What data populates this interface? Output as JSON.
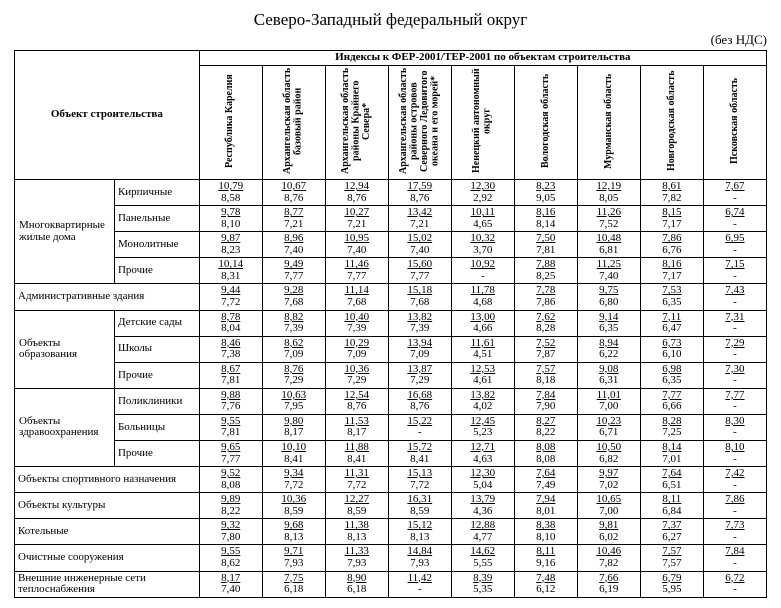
{
  "title": "Северо-Западный федеральный округ",
  "vat_note": "(без НДС)",
  "header_obj": "Объект строительства",
  "header_idx": "Индексы к ФЕР-2001/ТЕР-2001 по объектам строительства",
  "regions": [
    "Республика Карелия",
    "Архангельская область базовый район",
    "Архангельская область районы Крайнего Севера*",
    "Архангельская область районы островов Северного Ледовитого океана и его морей*",
    "Ненецкий автономный округ",
    "Вологодская область",
    "Мурманская область",
    "Новгородская область",
    "Псковская область"
  ],
  "groups": [
    {
      "label": "Многоквартирные жилые дома",
      "rows": [
        {
          "sub": "Кирпичные",
          "v": [
            [
              "10,79",
              "8,58"
            ],
            [
              "10,67",
              "8,76"
            ],
            [
              "12,94",
              "8,76"
            ],
            [
              "17,59",
              "8,76"
            ],
            [
              "12,30",
              "2,92"
            ],
            [
              "8,23",
              "9,05"
            ],
            [
              "12,19",
              "8,05"
            ],
            [
              "8,61",
              "7,82"
            ],
            [
              "7,67",
              "-"
            ]
          ]
        },
        {
          "sub": "Панельные",
          "v": [
            [
              "9,78",
              "8,10"
            ],
            [
              "8,77",
              "7,21"
            ],
            [
              "10,27",
              "7,21"
            ],
            [
              "13,42",
              "7,21"
            ],
            [
              "10,11",
              "4,65"
            ],
            [
              "8,16",
              "8,14"
            ],
            [
              "11,26",
              "7,52"
            ],
            [
              "8,15",
              "7,17"
            ],
            [
              "6,74",
              "-"
            ]
          ]
        },
        {
          "sub": "Монолитные",
          "v": [
            [
              "9,87",
              "8,23"
            ],
            [
              "8,96",
              "7,40"
            ],
            [
              "10,95",
              "7,40"
            ],
            [
              "15,02",
              "7,40"
            ],
            [
              "10,32",
              "3,70"
            ],
            [
              "7,50",
              "7,81"
            ],
            [
              "10,48",
              "6,81"
            ],
            [
              "7,86",
              "6,76"
            ],
            [
              "6,95",
              "-"
            ]
          ]
        },
        {
          "sub": "Прочие",
          "v": [
            [
              "10,14",
              "8,31"
            ],
            [
              "9,49",
              "7,77"
            ],
            [
              "11,46",
              "7,77"
            ],
            [
              "15,60",
              "7,77"
            ],
            [
              "10,92",
              "-"
            ],
            [
              "7,88",
              "8,25"
            ],
            [
              "11,25",
              "7,40"
            ],
            [
              "8,16",
              "7,17"
            ],
            [
              "7,15",
              "-"
            ]
          ]
        }
      ]
    },
    {
      "label": "Административные здания",
      "rows": [
        {
          "sub": null,
          "v": [
            [
              "9,44",
              "7,72"
            ],
            [
              "9,28",
              "7,68"
            ],
            [
              "11,14",
              "7,68"
            ],
            [
              "15,18",
              "7,68"
            ],
            [
              "11,78",
              "4,68"
            ],
            [
              "7,78",
              "7,86"
            ],
            [
              "9,75",
              "6,80"
            ],
            [
              "7,53",
              "6,35"
            ],
            [
              "7,43",
              "-"
            ]
          ]
        }
      ]
    },
    {
      "label": "Объекты образования",
      "rows": [
        {
          "sub": "Детские сады",
          "v": [
            [
              "8,78",
              "8,04"
            ],
            [
              "8,82",
              "7,39"
            ],
            [
              "10,40",
              "7,39"
            ],
            [
              "13,82",
              "7,39"
            ],
            [
              "13,00",
              "4,66"
            ],
            [
              "7,62",
              "8,28"
            ],
            [
              "9,14",
              "6,35"
            ],
            [
              "7,11",
              "6,47"
            ],
            [
              "7,31",
              "-"
            ]
          ]
        },
        {
          "sub": "Школы",
          "v": [
            [
              "8,46",
              "7,38"
            ],
            [
              "8,62",
              "7,09"
            ],
            [
              "10,29",
              "7,09"
            ],
            [
              "13,94",
              "7,09"
            ],
            [
              "11,61",
              "4,51"
            ],
            [
              "7,52",
              "7,87"
            ],
            [
              "8,94",
              "6,22"
            ],
            [
              "6,73",
              "6,10"
            ],
            [
              "7,29",
              "-"
            ]
          ]
        },
        {
          "sub": "Прочие",
          "v": [
            [
              "8,67",
              "7,81"
            ],
            [
              "8,76",
              "7,29"
            ],
            [
              "10,36",
              "7,29"
            ],
            [
              "13,87",
              "7,29"
            ],
            [
              "12,53",
              "4,61"
            ],
            [
              "7,57",
              "8,18"
            ],
            [
              "9,08",
              "6,31"
            ],
            [
              "6,98",
              "6,35"
            ],
            [
              "7,30",
              "-"
            ]
          ]
        }
      ]
    },
    {
      "label": "Объекты здравоохранения",
      "rows": [
        {
          "sub": "Поликлиники",
          "v": [
            [
              "9,88",
              "7,76"
            ],
            [
              "10,63",
              "7,95"
            ],
            [
              "12,54",
              "8,76"
            ],
            [
              "16,68",
              "8,76"
            ],
            [
              "13,82",
              "4,02"
            ],
            [
              "7,84",
              "7,90"
            ],
            [
              "11,01",
              "7,00"
            ],
            [
              "7,77",
              "6,66"
            ],
            [
              "7,77",
              "-"
            ]
          ]
        },
        {
          "sub": "Больницы",
          "v": [
            [
              "9,55",
              "7,81"
            ],
            [
              "9,80",
              "8,17"
            ],
            [
              "11,53",
              "8,17"
            ],
            [
              "15,22",
              "-"
            ],
            [
              "12,45",
              "5,23"
            ],
            [
              "8,27",
              "8,22"
            ],
            [
              "10,23",
              "6,71"
            ],
            [
              "8,28",
              "7,25"
            ],
            [
              "8,30",
              "-"
            ]
          ]
        },
        {
          "sub": "Прочие",
          "v": [
            [
              "9,65",
              "7,77"
            ],
            [
              "10,10",
              "8,41"
            ],
            [
              "11,88",
              "8,41"
            ],
            [
              "15,72",
              "8,41"
            ],
            [
              "12,71",
              "4,63"
            ],
            [
              "8,08",
              "8,08"
            ],
            [
              "10,50",
              "6,82"
            ],
            [
              "8,14",
              "7,01"
            ],
            [
              "8,10",
              "-"
            ]
          ]
        }
      ]
    },
    {
      "label": "Объекты спортивного назначения",
      "rows": [
        {
          "sub": null,
          "v": [
            [
              "9,52",
              "8,08"
            ],
            [
              "9,34",
              "7,72"
            ],
            [
              "11,31",
              "7,72"
            ],
            [
              "15,13",
              "7,72"
            ],
            [
              "12,30",
              "5,04"
            ],
            [
              "7,64",
              "7,49"
            ],
            [
              "9,97",
              "7,02"
            ],
            [
              "7,64",
              "6,51"
            ],
            [
              "7,42",
              "-"
            ]
          ]
        }
      ]
    },
    {
      "label": "Объекты культуры",
      "rows": [
        {
          "sub": null,
          "v": [
            [
              "9,89",
              "8,22"
            ],
            [
              "10,36",
              "8,59"
            ],
            [
              "12,27",
              "8,59"
            ],
            [
              "16,31",
              "8,59"
            ],
            [
              "13,79",
              "4,36"
            ],
            [
              "7,94",
              "8,01"
            ],
            [
              "10,65",
              "7,00"
            ],
            [
              "8,11",
              "6,84"
            ],
            [
              "7,86",
              "-"
            ]
          ]
        }
      ]
    },
    {
      "label": "Котельные",
      "rows": [
        {
          "sub": null,
          "v": [
            [
              "9,32",
              "7,80"
            ],
            [
              "9,68",
              "8,13"
            ],
            [
              "11,38",
              "8,13"
            ],
            [
              "15,12",
              "8,13"
            ],
            [
              "12,88",
              "4,77"
            ],
            [
              "8,38",
              "8,10"
            ],
            [
              "9,81",
              "6,02"
            ],
            [
              "7,37",
              "6,27"
            ],
            [
              "7,73",
              "-"
            ]
          ]
        }
      ]
    },
    {
      "label": "Очистные сооружения",
      "rows": [
        {
          "sub": null,
          "v": [
            [
              "9,55",
              "8,62"
            ],
            [
              "9,71",
              "7,93"
            ],
            [
              "11,33",
              "7,93"
            ],
            [
              "14,84",
              "7,93"
            ],
            [
              "14,62",
              "5,55"
            ],
            [
              "8,11",
              "9,16"
            ],
            [
              "10,46",
              "7,82"
            ],
            [
              "7,57",
              "7,57"
            ],
            [
              "7,84",
              "-"
            ]
          ]
        }
      ]
    },
    {
      "label": "Внешние инженерные сети теплоснабжения",
      "rows": [
        {
          "sub": null,
          "v": [
            [
              "8,17",
              "7,40"
            ],
            [
              "7,75",
              "6,18"
            ],
            [
              "8,90",
              "6,18"
            ],
            [
              "11,42",
              "-"
            ],
            [
              "8,39",
              "5,35"
            ],
            [
              "7,48",
              "6,12"
            ],
            [
              "7,66",
              "6,19"
            ],
            [
              "6,79",
              "5,95"
            ],
            [
              "6,72",
              "-"
            ]
          ]
        }
      ]
    }
  ]
}
